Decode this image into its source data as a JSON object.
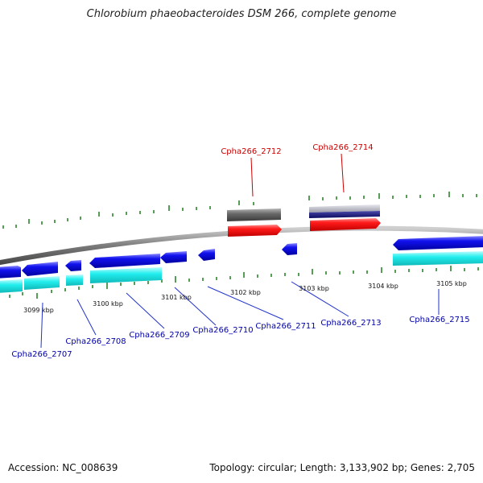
{
  "title": "Chlorobium phaeobacteroides DSM 266, complete genome",
  "footer": {
    "accession": "Accession: NC_008639",
    "summary": "Topology: circular; Length: 3,133,902 bp; Genes: 2,705"
  },
  "colors": {
    "background": "#ffffff",
    "backbone": "#8a8a8a",
    "tick": "#1e7d1e",
    "forward_cds": "#ff1111",
    "forward_gene": "#666666",
    "reverse_cds": "#1111ee",
    "reverse_gene": "#22eeee",
    "label_forward": "#cc0000",
    "label_reverse": "#0000aa",
    "leader_forward": "#cc0000",
    "leader_reverse": "#2233cc"
  },
  "kbp_labels": [
    "3099 kbp",
    "3100 kbp",
    "3101 kbp",
    "3102 kbp",
    "3103 kbp",
    "3104 kbp",
    "3105 kbp"
  ],
  "forward_genes": [
    "Cpha266_2712",
    "Cpha266_2714"
  ],
  "reverse_genes": [
    "Cpha266_2707",
    "Cpha266_2708",
    "Cpha266_2709",
    "Cpha266_2710",
    "Cpha266_2711",
    "Cpha266_2713",
    "Cpha266_2715"
  ]
}
